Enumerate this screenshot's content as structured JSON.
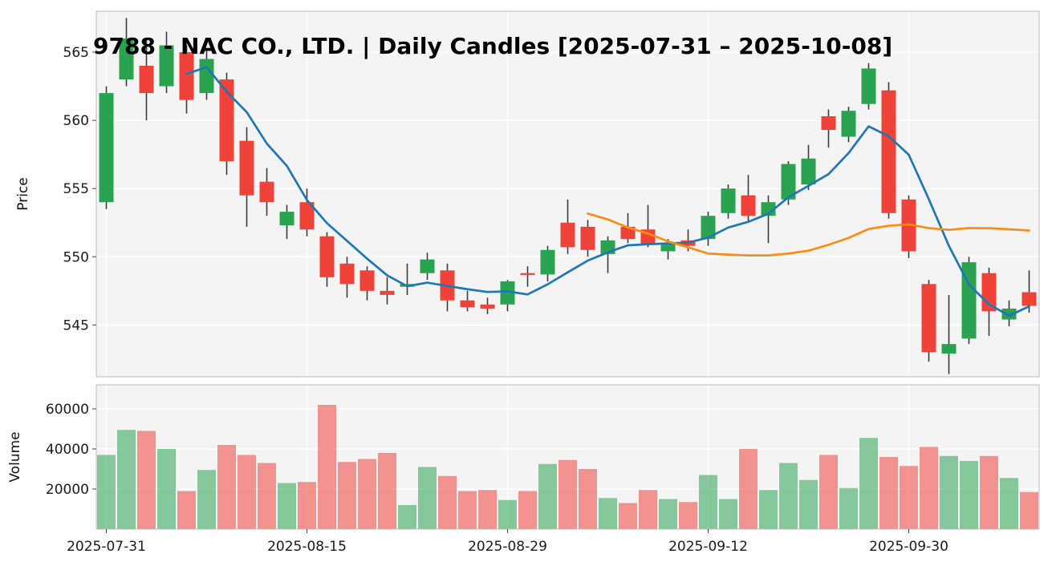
{
  "title": "9788 - NAC CO., LTD. | Daily Candles [2025-07-31 – 2025-10-08]",
  "colors": {
    "up": "#2aa350",
    "down": "#ef4238",
    "wick": "#3c3c3c",
    "ma_short": "#1f77b4",
    "ma_long": "#ff8b12",
    "plot_bg": "#f4f4f5",
    "grid": "#ffffff",
    "spine": "#bcbcbc",
    "tick_text": "#1a1a1a"
  },
  "price_axis": {
    "label": "Price",
    "ticks": [
      545,
      550,
      555,
      560,
      565
    ],
    "range": [
      541.2,
      568.0
    ]
  },
  "volume_axis": {
    "label": "Volume",
    "ticks": [
      20000,
      40000,
      60000
    ],
    "range": [
      0,
      72000
    ]
  },
  "x_axis": {
    "tick_indices": [
      0,
      10,
      20,
      30,
      40
    ],
    "tick_labels": [
      "2025-07-31",
      "2025-08-15",
      "2025-08-29",
      "2025-09-12",
      "2025-09-30"
    ]
  },
  "chart_data": {
    "type": "candlestick",
    "title": "9788 - NAC CO., LTD. | Daily Candles [2025-07-31 – 2025-10-08]",
    "ylabel": "Price",
    "ylabel2": "Volume",
    "legend_position": "none",
    "grid": true,
    "ma_short_period": 5,
    "ma_long_period": 25,
    "dates": [
      "2025-07-31",
      "2025-08-01",
      "2025-08-04",
      "2025-08-05",
      "2025-08-06",
      "2025-08-07",
      "2025-08-08",
      "2025-08-12",
      "2025-08-13",
      "2025-08-14",
      "2025-08-15",
      "2025-08-18",
      "2025-08-19",
      "2025-08-20",
      "2025-08-21",
      "2025-08-22",
      "2025-08-25",
      "2025-08-26",
      "2025-08-27",
      "2025-08-28",
      "2025-08-29",
      "2025-09-01",
      "2025-09-02",
      "2025-09-03",
      "2025-09-04",
      "2025-09-05",
      "2025-09-08",
      "2025-09-09",
      "2025-09-10",
      "2025-09-11",
      "2025-09-12",
      "2025-09-16",
      "2025-09-17",
      "2025-09-18",
      "2025-09-19",
      "2025-09-22",
      "2025-09-24",
      "2025-09-25",
      "2025-09-26",
      "2025-09-29",
      "2025-09-30",
      "2025-10-01",
      "2025-10-02",
      "2025-10-03",
      "2025-10-06",
      "2025-10-07",
      "2025-10-08"
    ],
    "ohlc": [
      [
        554.0,
        562.5,
        553.5,
        562.0
      ],
      [
        563.0,
        567.5,
        562.5,
        566.0
      ],
      [
        564.0,
        566.0,
        560.0,
        562.0
      ],
      [
        562.5,
        566.5,
        562.0,
        565.5
      ],
      [
        565.0,
        565.5,
        560.5,
        561.5
      ],
      [
        562.0,
        565.2,
        561.5,
        564.5
      ],
      [
        563.0,
        563.5,
        556.0,
        557.0
      ],
      [
        558.5,
        559.5,
        552.2,
        554.5
      ],
      [
        555.5,
        556.5,
        553.0,
        554.0
      ],
      [
        552.3,
        553.8,
        551.3,
        553.3
      ],
      [
        554.0,
        555.0,
        551.5,
        552.0
      ],
      [
        551.5,
        551.8,
        547.8,
        548.5
      ],
      [
        549.5,
        550.0,
        547.0,
        548.0
      ],
      [
        549.0,
        549.3,
        546.8,
        547.5
      ],
      [
        547.5,
        548.5,
        546.5,
        547.2
      ],
      [
        547.8,
        549.5,
        547.2,
        548.0
      ],
      [
        548.8,
        550.3,
        548.3,
        549.8
      ],
      [
        549.0,
        549.5,
        546.0,
        546.8
      ],
      [
        546.8,
        547.5,
        546.0,
        546.3
      ],
      [
        546.5,
        547.0,
        545.8,
        546.2
      ],
      [
        546.5,
        548.3,
        546.0,
        548.2
      ],
      [
        548.8,
        549.3,
        547.8,
        548.7
      ],
      [
        548.7,
        550.8,
        548.2,
        550.5
      ],
      [
        552.5,
        554.2,
        550.2,
        550.7
      ],
      [
        552.2,
        552.7,
        550.0,
        550.5
      ],
      [
        550.2,
        551.5,
        548.8,
        551.2
      ],
      [
        552.2,
        553.2,
        551.0,
        551.3
      ],
      [
        552.0,
        553.8,
        550.7,
        550.9
      ],
      [
        550.4,
        551.3,
        549.8,
        551.0
      ],
      [
        551.2,
        552.0,
        550.4,
        550.8
      ],
      [
        551.3,
        553.3,
        550.8,
        553.0
      ],
      [
        553.2,
        555.3,
        552.8,
        555.0
      ],
      [
        554.5,
        556.0,
        552.5,
        553.0
      ],
      [
        553.0,
        554.5,
        551.0,
        554.0
      ],
      [
        554.2,
        557.0,
        553.8,
        556.8
      ],
      [
        555.3,
        558.2,
        554.9,
        557.2
      ],
      [
        560.3,
        560.8,
        558.0,
        559.3
      ],
      [
        558.8,
        561.0,
        558.4,
        560.7
      ],
      [
        561.2,
        564.2,
        560.8,
        563.8
      ],
      [
        562.2,
        562.8,
        552.8,
        553.2
      ],
      [
        554.2,
        554.5,
        549.9,
        550.4
      ],
      [
        548.0,
        548.3,
        542.3,
        543.0
      ],
      [
        542.9,
        547.2,
        541.4,
        543.6
      ],
      [
        544.0,
        550.0,
        543.6,
        549.6
      ],
      [
        548.8,
        549.2,
        544.2,
        546.0
      ],
      [
        545.4,
        546.8,
        544.9,
        546.2
      ],
      [
        547.4,
        549.0,
        545.9,
        546.4
      ]
    ],
    "volume": [
      37000,
      49500,
      49000,
      40000,
      19000,
      29500,
      42000,
      37000,
      33000,
      23000,
      23500,
      62000,
      33500,
      35000,
      38000,
      12000,
      31000,
      26500,
      19000,
      19500,
      14500,
      19000,
      32500,
      34500,
      30000,
      15500,
      13000,
      19500,
      15000,
      13500,
      27000,
      15000,
      40000,
      19500,
      33000,
      24500,
      37000,
      20500,
      45500,
      36000,
      31500,
      41000,
      36500,
      34000,
      36500,
      25500,
      18500
    ]
  }
}
